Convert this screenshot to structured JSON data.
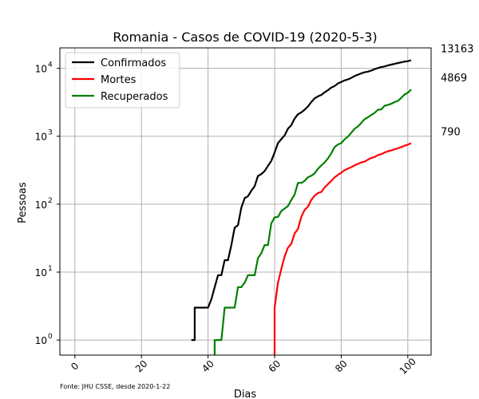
{
  "chart_data": {
    "type": "line",
    "title": "Romania - Casos de COVID-19 (2020-5-3)",
    "xlabel": "Dias",
    "ylabel": "Pessoas",
    "xlim": [
      -4.5,
      107
    ],
    "ylim": [
      0.6,
      20000
    ],
    "yscale": "log",
    "grid": true,
    "legend_position": "top-left",
    "x_ticks": [
      0,
      20,
      40,
      60,
      80,
      100
    ],
    "y_ticks": [
      {
        "value": 1,
        "base": "10",
        "exp": "0"
      },
      {
        "value": 10,
        "base": "10",
        "exp": "1"
      },
      {
        "value": 100,
        "base": "10",
        "exp": "2"
      },
      {
        "value": 1000,
        "base": "10",
        "exp": "3"
      },
      {
        "value": 10000,
        "base": "10",
        "exp": "4"
      }
    ],
    "source_note": "Fonte: JHU CSSE, desde 2020-1-22",
    "series": [
      {
        "name": "Confirmados",
        "color": "#000000",
        "end_label": "13163",
        "points": [
          [
            35,
            1
          ],
          [
            36,
            1
          ],
          [
            36,
            3
          ],
          [
            40,
            3
          ],
          [
            41,
            4
          ],
          [
            42,
            6
          ],
          [
            43,
            9
          ],
          [
            44,
            9
          ],
          [
            45,
            15
          ],
          [
            46,
            15
          ],
          [
            47,
            25
          ],
          [
            48,
            45
          ],
          [
            49,
            49
          ],
          [
            50,
            89
          ],
          [
            51,
            123
          ],
          [
            52,
            131
          ],
          [
            53,
            158
          ],
          [
            54,
            184
          ],
          [
            55,
            260
          ],
          [
            56,
            277
          ],
          [
            57,
            308
          ],
          [
            58,
            367
          ],
          [
            59,
            433
          ],
          [
            60,
            576
          ],
          [
            61,
            794
          ],
          [
            62,
            906
          ],
          [
            63,
            1029
          ],
          [
            64,
            1292
          ],
          [
            65,
            1452
          ],
          [
            66,
            1815
          ],
          [
            67,
            2109
          ],
          [
            68,
            2245
          ],
          [
            69,
            2460
          ],
          [
            70,
            2738
          ],
          [
            71,
            3183
          ],
          [
            72,
            3613
          ],
          [
            73,
            3864
          ],
          [
            74,
            4057
          ],
          [
            75,
            4417
          ],
          [
            76,
            4761
          ],
          [
            77,
            5202
          ],
          [
            78,
            5467
          ],
          [
            79,
            5990
          ],
          [
            80,
            6300
          ],
          [
            81,
            6633
          ],
          [
            82,
            6879
          ],
          [
            83,
            7216
          ],
          [
            84,
            7707
          ],
          [
            85,
            8067
          ],
          [
            86,
            8418
          ],
          [
            87,
            8746
          ],
          [
            88,
            8936
          ],
          [
            89,
            9242
          ],
          [
            90,
            9710
          ],
          [
            91,
            10096
          ],
          [
            92,
            10417
          ],
          [
            93,
            10635
          ],
          [
            94,
            11036
          ],
          [
            95,
            11339
          ],
          [
            96,
            11616
          ],
          [
            97,
            11978
          ],
          [
            98,
            12240
          ],
          [
            99,
            12567
          ],
          [
            100,
            12732
          ],
          [
            101,
            13163
          ]
        ]
      },
      {
        "name": "Mortes",
        "color": "#ff0000",
        "end_label": "790",
        "points": [
          [
            60,
            0.6
          ],
          [
            60,
            3
          ],
          [
            61,
            7
          ],
          [
            62,
            11
          ],
          [
            63,
            17
          ],
          [
            64,
            23
          ],
          [
            65,
            26
          ],
          [
            66,
            37
          ],
          [
            67,
            43
          ],
          [
            68,
            65
          ],
          [
            69,
            82
          ],
          [
            70,
            92
          ],
          [
            71,
            115
          ],
          [
            72,
            133
          ],
          [
            73,
            146
          ],
          [
            74,
            151
          ],
          [
            75,
            176
          ],
          [
            76,
            197
          ],
          [
            77,
            220
          ],
          [
            78,
            248
          ],
          [
            79,
            270
          ],
          [
            80,
            291
          ],
          [
            81,
            316
          ],
          [
            82,
            333
          ],
          [
            83,
            351
          ],
          [
            84,
            372
          ],
          [
            85,
            392
          ],
          [
            86,
            411
          ],
          [
            87,
            423
          ],
          [
            88,
            451
          ],
          [
            89,
            478
          ],
          [
            90,
            494
          ],
          [
            91,
            527
          ],
          [
            92,
            545
          ],
          [
            93,
            575
          ],
          [
            94,
            601
          ],
          [
            95,
            619
          ],
          [
            96,
            641
          ],
          [
            97,
            663
          ],
          [
            98,
            693
          ],
          [
            99,
            725
          ],
          [
            100,
            752
          ],
          [
            101,
            790
          ]
        ]
      },
      {
        "name": "Recuperados",
        "color": "#008000",
        "end_label": "4869",
        "points": [
          [
            42,
            0.6
          ],
          [
            42,
            1
          ],
          [
            44,
            1
          ],
          [
            45,
            3
          ],
          [
            48,
            3
          ],
          [
            49,
            6
          ],
          [
            50,
            6
          ],
          [
            51,
            7
          ],
          [
            52,
            9
          ],
          [
            54,
            9
          ],
          [
            55,
            16
          ],
          [
            56,
            19
          ],
          [
            57,
            25
          ],
          [
            58,
            25
          ],
          [
            59,
            52
          ],
          [
            60,
            64
          ],
          [
            61,
            65
          ],
          [
            62,
            79
          ],
          [
            63,
            86
          ],
          [
            64,
            94
          ],
          [
            65,
            115
          ],
          [
            66,
            138
          ],
          [
            67,
            206
          ],
          [
            68,
            206
          ],
          [
            69,
            220
          ],
          [
            70,
            249
          ],
          [
            71,
            262
          ],
          [
            72,
            283
          ],
          [
            73,
            331
          ],
          [
            74,
            371
          ],
          [
            75,
            411
          ],
          [
            76,
            469
          ],
          [
            77,
            559
          ],
          [
            78,
            691
          ],
          [
            79,
            756
          ],
          [
            80,
            792
          ],
          [
            81,
            900
          ],
          [
            82,
            985
          ],
          [
            83,
            1118
          ],
          [
            84,
            1289
          ],
          [
            85,
            1391
          ],
          [
            86,
            1564
          ],
          [
            87,
            1780
          ],
          [
            88,
            1900
          ],
          [
            89,
            2050
          ],
          [
            90,
            2200
          ],
          [
            91,
            2460
          ],
          [
            92,
            2478
          ],
          [
            93,
            2806
          ],
          [
            94,
            2890
          ],
          [
            95,
            3001
          ],
          [
            96,
            3177
          ],
          [
            97,
            3314
          ],
          [
            98,
            3659
          ],
          [
            99,
            4115
          ],
          [
            100,
            4375
          ],
          [
            101,
            4869
          ]
        ]
      }
    ]
  }
}
